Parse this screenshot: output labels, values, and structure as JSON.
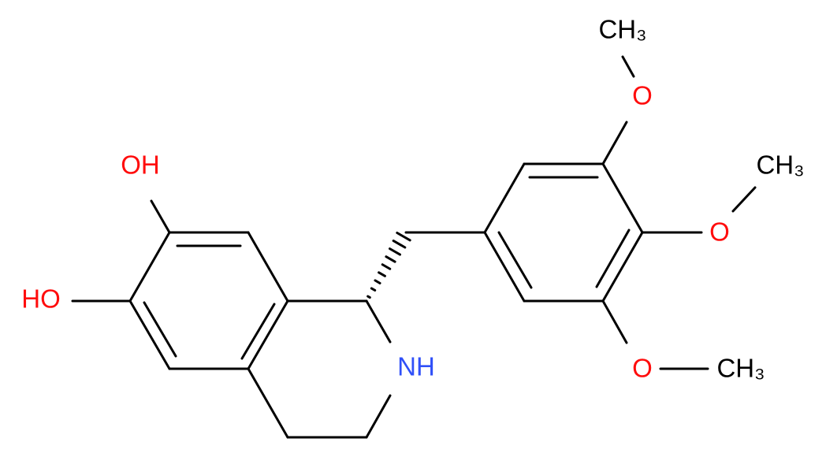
{
  "atoms": {
    "oh_top": "OH",
    "ho_left": "HO",
    "nh": "NH",
    "o_top": "O",
    "o_mid": "O",
    "o_bottom": "O",
    "ch3_top": "CH₃",
    "ch3_mid": "CH₃",
    "ch3_bottom": "CH₃"
  }
}
